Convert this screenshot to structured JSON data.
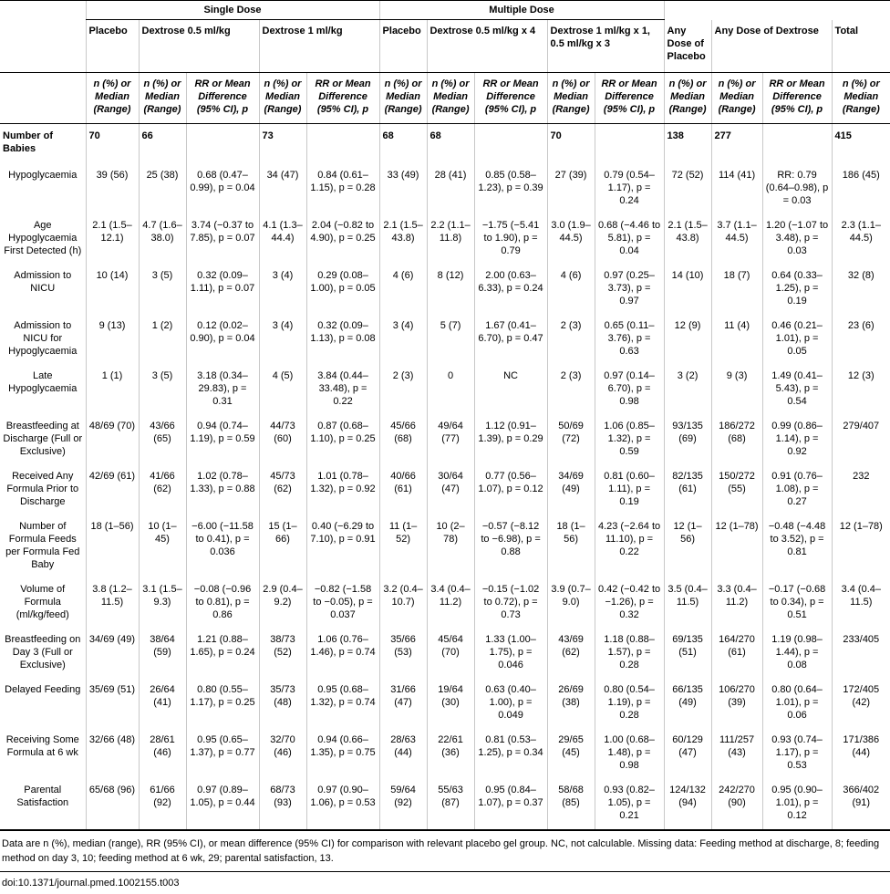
{
  "groups": {
    "single": "Single Dose",
    "multiple": "Multiple Dose"
  },
  "columns": {
    "placebo_single": "Placebo",
    "dex05_single": "Dextrose 0.5 ml/kg",
    "dex1_single": "Dextrose 1 ml/kg",
    "placebo_multi": "Placebo",
    "dex05_multi": "Dextrose 0.5 ml/kg x 4",
    "dex1_multi": "Dextrose 1 ml/kg x 1, 0.5 ml/kg x 3",
    "any_placebo": "Any Dose of Placebo",
    "any_dex": "Any Dose of Dextrose",
    "total": "Total"
  },
  "subheaders": {
    "n_median": "n (%) or Median (Range)",
    "rr": "RR or Mean Difference (95% CI), p"
  },
  "n_row": {
    "label": "Number of Babies",
    "values": [
      "70",
      "66",
      "",
      "73",
      "",
      "68",
      "68",
      "",
      "70",
      "",
      "138",
      "277",
      "",
      "415"
    ]
  },
  "rows": [
    {
      "label": "Hypoglycaemia",
      "cells": [
        "39 (56)",
        "25 (38)",
        "0.68 (0.47–0.99), p = 0.04",
        "34 (47)",
        "0.84 (0.61–1.15), p = 0.28",
        "33 (49)",
        "28 (41)",
        "0.85 (0.58–1.23), p = 0.39",
        "27 (39)",
        "0.79 (0.54–1.17), p = 0.24",
        "72 (52)",
        "114 (41)",
        "RR: 0.79 (0.64–0.98), p = 0.03",
        "186 (45)"
      ]
    },
    {
      "label": "Age Hypoglycaemia First Detected (h)",
      "cells": [
        "2.1 (1.5–12.1)",
        "4.7 (1.6–38.0)",
        "3.74 (−0.37 to 7.85), p = 0.07",
        "4.1 (1.3–44.4)",
        "2.04 (−0.82 to 4.90), p = 0.25",
        "2.1 (1.5–43.8)",
        "2.2 (1.1–11.8)",
        "−1.75 (−5.41 to 1.90), p = 0.79",
        "3.0 (1.9–44.5)",
        "0.68 (−4.46 to 5.81), p = 0.04",
        "2.1 (1.5–43.8)",
        "3.7 (1.1–44.5)",
        "1.20 (−1.07 to 3.48), p = 0.03",
        "2.3 (1.1–44.5)"
      ]
    },
    {
      "label": "Admission to NICU",
      "cells": [
        "10 (14)",
        "3 (5)",
        "0.32 (0.09–1.11), p = 0.07",
        "3 (4)",
        "0.29 (0.08–1.00), p = 0.05",
        "4 (6)",
        "8 (12)",
        "2.00 (0.63–6.33), p = 0.24",
        "4 (6)",
        "0.97 (0.25–3.73), p = 0.97",
        "14 (10)",
        "18 (7)",
        "0.64 (0.33–1.25), p = 0.19",
        "32 (8)"
      ]
    },
    {
      "label": "Admission to NICU for Hypoglycaemia",
      "cells": [
        "9 (13)",
        "1 (2)",
        "0.12 (0.02–0.90), p = 0.04",
        "3 (4)",
        "0.32 (0.09–1.13), p = 0.08",
        "3 (4)",
        "5 (7)",
        "1.67 (0.41–6.70), p = 0.47",
        "2 (3)",
        "0.65 (0.11–3.76), p = 0.63",
        "12 (9)",
        "11 (4)",
        "0.46 (0.21–1.01), p = 0.05",
        "23 (6)"
      ]
    },
    {
      "label": "Late Hypoglycaemia",
      "cells": [
        "1 (1)",
        "3 (5)",
        "3.18 (0.34–29.83), p = 0.31",
        "4 (5)",
        "3.84 (0.44–33.48), p = 0.22",
        "2 (3)",
        "0",
        "NC",
        "2 (3)",
        "0.97 (0.14–6.70), p = 0.98",
        "3 (2)",
        "9 (3)",
        "1.49 (0.41–5.43), p = 0.54",
        "12 (3)"
      ]
    },
    {
      "label": "Breastfeeding at Discharge (Full or Exclusive)",
      "cells": [
        "48/69 (70)",
        "43/66 (65)",
        "0.94 (0.74–1.19), p = 0.59",
        "44/73 (60)",
        "0.87 (0.68–1.10), p = 0.25",
        "45/66 (68)",
        "49/64 (77)",
        "1.12 (0.91–1.39), p = 0.29",
        "50/69 (72)",
        "1.06 (0.85–1.32), p = 0.59",
        "93/135 (69)",
        "186/272 (68)",
        "0.99 (0.86–1.14), p = 0.92",
        "279/407"
      ]
    },
    {
      "label": "Received Any Formula Prior to Discharge",
      "cells": [
        "42/69 (61)",
        "41/66 (62)",
        "1.02 (0.78–1.33), p = 0.88",
        "45/73 (62)",
        "1.01 (0.78–1.32), p = 0.92",
        "40/66 (61)",
        "30/64 (47)",
        "0.77 (0.56–1.07), p = 0.12",
        "34/69 (49)",
        "0.81 (0.60–1.11), p = 0.19",
        "82/135 (61)",
        "150/272 (55)",
        "0.91 (0.76–1.08), p = 0.27",
        "232"
      ]
    },
    {
      "label": "Number of Formula Feeds per Formula Fed Baby",
      "cells": [
        "18 (1–56)",
        "10 (1–45)",
        "−6.00 (−11.58 to 0.41), p = 0.036",
        "15 (1–66)",
        "0.40 (−6.29 to 7.10), p = 0.91",
        "11 (1–52)",
        "10 (2–78)",
        "−0.57 (−8.12 to −6.98), p = 0.88",
        "18 (1–56)",
        "4.23 (−2.64 to 11.10), p = 0.22",
        "12 (1–56)",
        "12 (1–78)",
        "−0.48 (−4.48 to 3.52), p = 0.81",
        "12 (1–78)"
      ]
    },
    {
      "label": "Volume of Formula (ml/kg/feed)",
      "cells": [
        "3.8 (1.2–11.5)",
        "3.1 (1.5–9.3)",
        "−0.08 (−0.96 to 0.81), p = 0.86",
        "2.9 (0.4–9.2)",
        "−0.82 (−1.58 to −0.05), p = 0.037",
        "3.2 (0.4–10.7)",
        "3.4 (0.4–11.2)",
        "−0.15 (−1.02 to 0.72), p = 0.73",
        "3.9 (0.7–9.0)",
        "0.42 (−0.42 to −1.26), p = 0.32",
        "3.5 (0.4–11.5)",
        "3.3 (0.4–11.2)",
        "−0.17 (−0.68 to 0.34), p = 0.51",
        "3.4 (0.4–11.5)"
      ]
    },
    {
      "label": "Breastfeeding on Day 3 (Full or Exclusive)",
      "cells": [
        "34/69 (49)",
        "38/64 (59)",
        "1.21 (0.88–1.65), p = 0.24",
        "38/73 (52)",
        "1.06 (0.76–1.46), p = 0.74",
        "35/66 (53)",
        "45/64 (70)",
        "1.33 (1.00–1.75), p = 0.046",
        "43/69 (62)",
        "1.18 (0.88–1.57), p = 0.28",
        "69/135 (51)",
        "164/270 (61)",
        "1.19 (0.98–1.44), p = 0.08",
        "233/405"
      ]
    },
    {
      "label": "Delayed Feeding",
      "cells": [
        "35/69 (51)",
        "26/64 (41)",
        "0.80 (0.55–1.17), p = 0.25",
        "35/73 (48)",
        "0.95 (0.68–1.32), p = 0.74",
        "31/66 (47)",
        "19/64 (30)",
        "0.63 (0.40–1.00), p = 0.049",
        "26/69 (38)",
        "0.80 (0.54–1.19), p = 0.28",
        "66/135 (49)",
        "106/270 (39)",
        "0.80 (0.64–1.01), p = 0.06",
        "172/405 (42)"
      ]
    },
    {
      "label": "Receiving Some Formula at 6 wk",
      "cells": [
        "32/66 (48)",
        "28/61 (46)",
        "0.95 (0.65–1.37), p = 0.77",
        "32/70 (46)",
        "0.94 (0.66–1.35), p = 0.75",
        "28/63 (44)",
        "22/61 (36)",
        "0.81 (0.53–1.25), p = 0.34",
        "29/65 (45)",
        "1.00 (0.68–1.48), p = 0.98",
        "60/129 (47)",
        "111/257 (43)",
        "0.93 (0.74–1.17), p = 0.53",
        "171/386 (44)"
      ]
    },
    {
      "label": "Parental Satisfaction",
      "cells": [
        "65/68 (96)",
        "61/66 (92)",
        "0.97 (0.89–1.05), p = 0.44",
        "68/73 (93)",
        "0.97 (0.90–1.06), p = 0.53",
        "59/64 (92)",
        "55/63 (87)",
        "0.95 (0.84–1.07), p = 0.37",
        "58/68 (85)",
        "0.93 (0.82–1.05), p = 0.21",
        "124/132 (94)",
        "242/270 (90)",
        "0.95 (0.90–1.01), p = 0.12",
        "366/402 (91)"
      ]
    }
  ],
  "footnote": "Data are n (%), median (range), RR (95% CI), or mean difference (95% CI) for comparison with relevant placebo gel group. NC, not calculable. Missing data: Feeding method at discharge, 8; feeding method on day 3, 10; feeding method at 6 wk, 29; parental satisfaction, 13.",
  "doi": "doi:10.1371/journal.pmed.1002155.t003"
}
